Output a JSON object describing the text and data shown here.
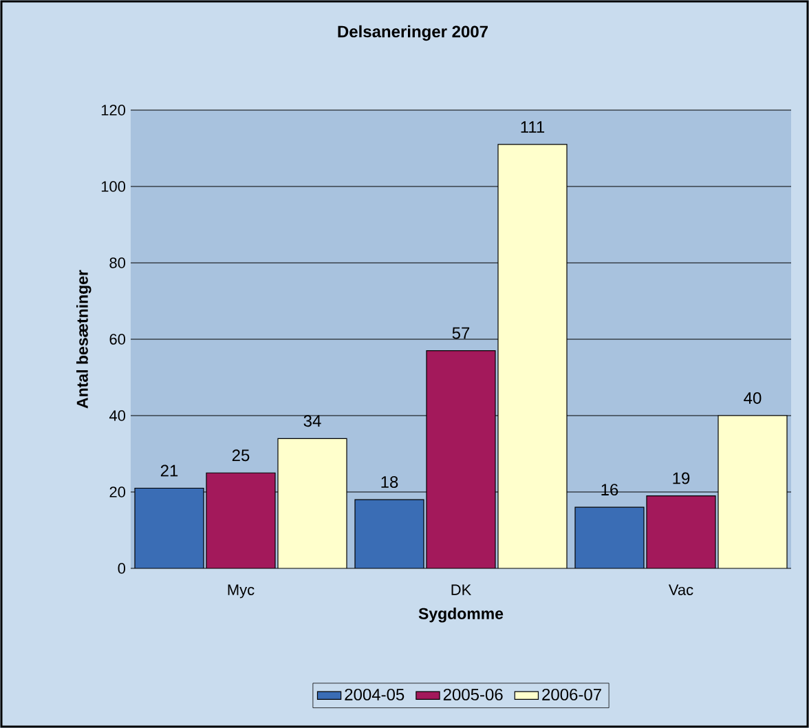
{
  "chart_data": {
    "type": "bar",
    "title": "Delsaneringer 2007",
    "xlabel": "Sygdomme",
    "ylabel": "Antal besætninger",
    "categories": [
      "Myc",
      "DK",
      "Vac"
    ],
    "series": [
      {
        "name": "2004-05",
        "color": "#3a6db5",
        "values": [
          21,
          18,
          16
        ]
      },
      {
        "name": "2005-06",
        "color": "#a3195b",
        "values": [
          25,
          57,
          19
        ]
      },
      {
        "name": "2006-07",
        "color": "#ffffcc",
        "values": [
          34,
          111,
          40
        ]
      }
    ],
    "ylim": [
      0,
      120
    ],
    "yticks": [
      0,
      20,
      40,
      60,
      80,
      100,
      120
    ],
    "grid": "y",
    "legend": "bottom",
    "data_labels": true
  }
}
